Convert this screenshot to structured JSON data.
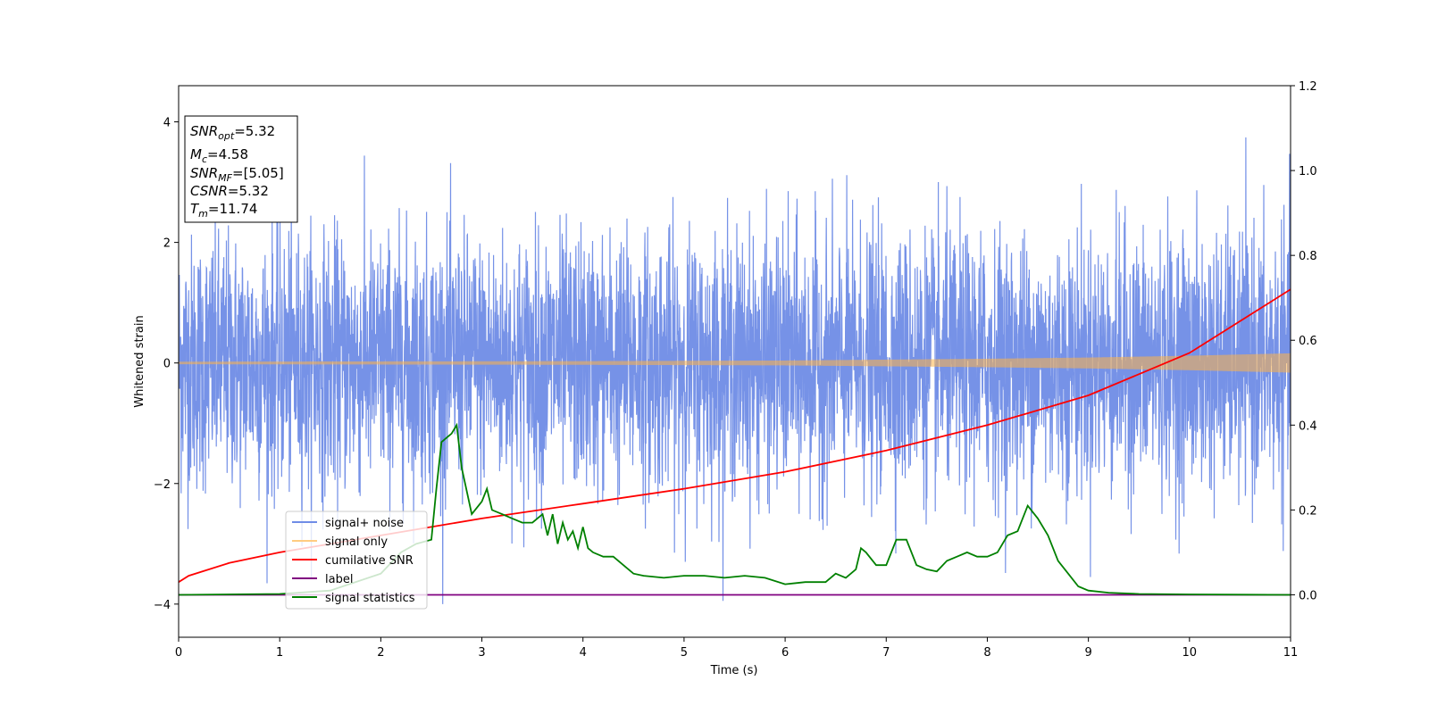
{
  "chart_data": {
    "type": "line",
    "xlabel": "Time (s)",
    "ylabel": "Whitened strain",
    "xlim": [
      0,
      11
    ],
    "ylim": [
      -4.55,
      4.6
    ],
    "y2lim": [
      -0.1,
      1.2
    ],
    "xticks": [
      "0",
      "1",
      "2",
      "3",
      "4",
      "5",
      "6",
      "7",
      "8",
      "9",
      "10",
      "11"
    ],
    "yticks": [
      "−4",
      "−2",
      "0",
      "2",
      "4"
    ],
    "y2ticks": [
      "0.0",
      "0.2",
      "0.4",
      "0.6",
      "0.8",
      "1.0",
      "1.2"
    ],
    "grid": false,
    "legend_position": "lower-left",
    "legend": [
      "signal+ noise",
      "signal only",
      "cumilative SNR",
      "label",
      "signal statistics"
    ],
    "info_box": {
      "snr_opt": {
        "main": "SNR",
        "sub": "opt",
        "value": "=5.32"
      },
      "mc": {
        "main": "M",
        "sub": "c",
        "value": "=4.58"
      },
      "snr_mf": {
        "main": "SNR",
        "sub": "MF",
        "value": "=[5.05]"
      },
      "csnr": {
        "main": "CSNR",
        "value": "=5.32"
      },
      "tm": {
        "main": "T",
        "sub": "m",
        "value": "=11.74"
      }
    },
    "series": [
      {
        "name": "signal+ noise",
        "axis": "left",
        "color": "#6f8ce6",
        "description": "whitened noisy strain, roughly N(0,1) across 0-11 s",
        "noise_std": 1.0,
        "range": [
          -4.0,
          4.18
        ]
      },
      {
        "name": "signal only",
        "axis": "left",
        "color": "#ffb347",
        "x": [
          0,
          2,
          4,
          6,
          8,
          9,
          10,
          11
        ],
        "amplitude": [
          0.02,
          0.025,
          0.03,
          0.04,
          0.07,
          0.09,
          0.12,
          0.16
        ]
      },
      {
        "name": "cumilative SNR",
        "axis": "right",
        "color": "#ff0000",
        "x": [
          0,
          0.1,
          0.5,
          1,
          2,
          3,
          4,
          5,
          6,
          7,
          8,
          9,
          10,
          11
        ],
        "y": [
          0.03,
          0.045,
          0.075,
          0.1,
          0.14,
          0.18,
          0.215,
          0.25,
          0.29,
          0.34,
          0.4,
          0.47,
          0.57,
          0.72
        ]
      },
      {
        "name": "label",
        "axis": "right",
        "color": "#800080",
        "x": [
          0,
          11
        ],
        "y": [
          0.0,
          0.0
        ]
      },
      {
        "name": "signal statistics",
        "axis": "right",
        "color": "#008000",
        "x": [
          0,
          1,
          1.5,
          2,
          2.2,
          2.35,
          2.5,
          2.55,
          2.6,
          2.7,
          2.75,
          2.8,
          2.9,
          3.0,
          3.05,
          3.1,
          3.2,
          3.3,
          3.4,
          3.5,
          3.6,
          3.65,
          3.7,
          3.75,
          3.8,
          3.85,
          3.9,
          3.95,
          4.0,
          4.05,
          4.1,
          4.2,
          4.3,
          4.4,
          4.5,
          4.6,
          4.8,
          5.0,
          5.2,
          5.4,
          5.6,
          5.8,
          6.0,
          6.2,
          6.4,
          6.5,
          6.6,
          6.7,
          6.75,
          6.8,
          6.9,
          7.0,
          7.1,
          7.2,
          7.3,
          7.4,
          7.5,
          7.6,
          7.7,
          7.8,
          7.9,
          8.0,
          8.1,
          8.2,
          8.3,
          8.4,
          8.5,
          8.6,
          8.7,
          8.8,
          8.9,
          9.0,
          9.2,
          9.5,
          10.0,
          11.0
        ],
        "y": [
          0.0,
          0.002,
          0.01,
          0.05,
          0.1,
          0.12,
          0.13,
          0.25,
          0.36,
          0.38,
          0.4,
          0.3,
          0.19,
          0.22,
          0.25,
          0.2,
          0.19,
          0.18,
          0.17,
          0.17,
          0.19,
          0.14,
          0.19,
          0.12,
          0.17,
          0.13,
          0.15,
          0.11,
          0.16,
          0.11,
          0.1,
          0.09,
          0.09,
          0.07,
          0.05,
          0.045,
          0.04,
          0.045,
          0.045,
          0.04,
          0.045,
          0.04,
          0.025,
          0.03,
          0.03,
          0.05,
          0.04,
          0.06,
          0.11,
          0.1,
          0.07,
          0.07,
          0.13,
          0.13,
          0.07,
          0.06,
          0.055,
          0.08,
          0.09,
          0.1,
          0.09,
          0.09,
          0.1,
          0.14,
          0.15,
          0.21,
          0.18,
          0.14,
          0.08,
          0.05,
          0.02,
          0.01,
          0.005,
          0.002,
          0.001,
          0.0
        ]
      }
    ]
  }
}
